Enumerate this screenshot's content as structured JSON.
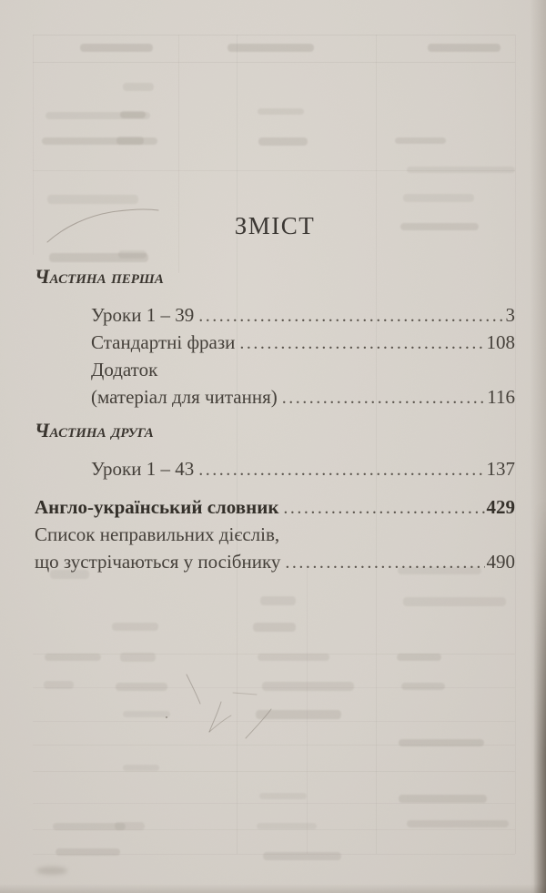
{
  "document": {
    "title": "ЗМІСТ",
    "toc": [
      {
        "type": "heading",
        "text": "Частина перша"
      },
      {
        "type": "entry",
        "text": "Уроки 1 – 39",
        "page": "3",
        "indent": true,
        "leader": true
      },
      {
        "type": "entry",
        "text": "Стандартні фрази",
        "page": "108",
        "indent": true,
        "leader": true
      },
      {
        "type": "entry",
        "text": "Додаток",
        "page": "",
        "indent": true,
        "leader": false
      },
      {
        "type": "entry",
        "text": "(матеріал для читання)",
        "page": "116",
        "indent": true,
        "leader": true
      },
      {
        "type": "heading",
        "text": "Частина друга"
      },
      {
        "type": "entry",
        "text": "Уроки 1 – 43",
        "page": "137",
        "indent": true,
        "leader": true
      },
      {
        "type": "entry",
        "text": "Англо-український словник",
        "page": "429",
        "indent": false,
        "leader": true,
        "bold": true
      },
      {
        "type": "entry",
        "text": "Список неправильних дієслів,",
        "page": "",
        "indent": false,
        "leader": false
      },
      {
        "type": "entry",
        "text": "що зустрічаються у посібнику",
        "page": "490",
        "indent": false,
        "leader": true
      }
    ]
  },
  "colors": {
    "paper": "#d6d1ca",
    "ink": "#45403a",
    "ink_bold": "#34302a",
    "bleed_through": "#8d857b",
    "edge_shadow": "#3e352b"
  }
}
